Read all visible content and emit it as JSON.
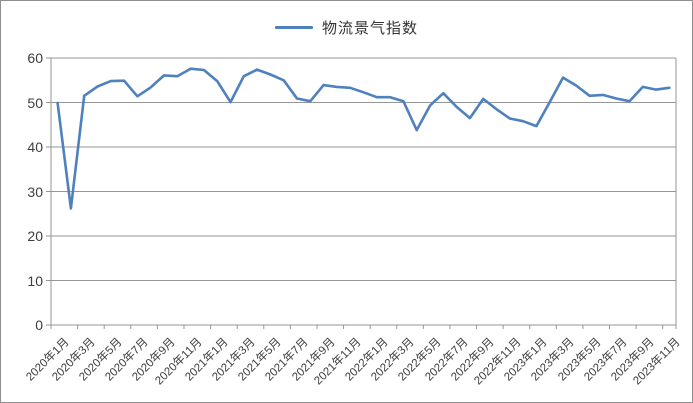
{
  "legend": {
    "label": "物流景气指数"
  },
  "colors": {
    "line": "#4F81BD",
    "grid": "#969696",
    "axis_text": "#3d3d3d",
    "frame_border": "#8e8e8e",
    "background": "#ffffff"
  },
  "chart_data": {
    "type": "line",
    "title": "",
    "series_name": "物流景气指数",
    "legend_position": "top-center",
    "grid": "horizontal",
    "ylim": [
      0,
      60
    ],
    "yticks": [
      0,
      10,
      20,
      30,
      40,
      50,
      60
    ],
    "xtick_every": 2,
    "x": [
      "2020年1月",
      "2020年2月",
      "2020年3月",
      "2020年4月",
      "2020年5月",
      "2020年6月",
      "2020年7月",
      "2020年8月",
      "2020年9月",
      "2020年10月",
      "2020年11月",
      "2020年12月",
      "2021年1月",
      "2021年2月",
      "2021年3月",
      "2021年4月",
      "2021年5月",
      "2021年6月",
      "2021年7月",
      "2021年8月",
      "2021年9月",
      "2021年10月",
      "2021年11月",
      "2021年12月",
      "2022年1月",
      "2022年2月",
      "2022年3月",
      "2022年4月",
      "2022年5月",
      "2022年6月",
      "2022年7月",
      "2022年8月",
      "2022年9月",
      "2022年10月",
      "2022年11月",
      "2022年12月",
      "2023年1月",
      "2023年2月",
      "2023年3月",
      "2023年4月",
      "2023年5月",
      "2023年6月",
      "2023年7月",
      "2023年8月",
      "2023年9月",
      "2023年10月",
      "2023年11月"
    ],
    "values": [
      49.9,
      26.2,
      51.5,
      53.6,
      54.8,
      54.9,
      51.4,
      53.4,
      56.1,
      55.9,
      57.6,
      57.3,
      54.8,
      50.1,
      55.9,
      57.4,
      56.3,
      55.0,
      50.9,
      50.3,
      53.9,
      53.5,
      53.3,
      52.3,
      51.2,
      51.2,
      50.3,
      43.8,
      49.3,
      52.1,
      49.0,
      46.5,
      50.8,
      48.5,
      46.4,
      45.8,
      44.7,
      50.1,
      55.6,
      53.8,
      51.5,
      51.7,
      50.9,
      50.3,
      53.5,
      52.9,
      53.3
    ]
  }
}
